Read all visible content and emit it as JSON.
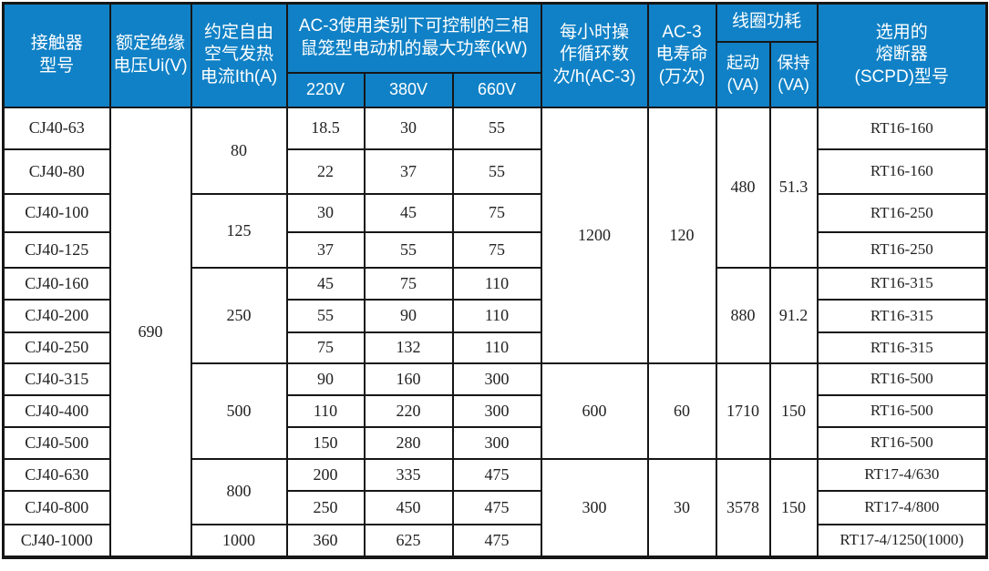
{
  "colors": {
    "header_bg": "#1081c6",
    "header_text": "#ffffff",
    "border": "#161616",
    "body_text": "#222222"
  },
  "table": {
    "header": {
      "model": "接触器\n型号",
      "rated_voltage": "额定绝缘\n电压Ui(V)",
      "thermal_current": "约定自由\n空气发热\n电流Ith(A)",
      "ac3_power_group": "AC-3使用类别下可控制的三相\n鼠笼型电动机的最大功率(kW)",
      "v220": "220V",
      "v380": "380V",
      "v660": "660V",
      "cycles": "每小时操\n作循环数\n次/h(AC-3)",
      "life": "AC-3\n电寿命\n(万次)",
      "coil_group": "线圈功耗",
      "coil_start": "起动\n(VA)",
      "coil_hold": "保持\n(VA)",
      "fuse": "选用的\n熔断器\n(SCPD)型号"
    },
    "body": [
      [
        {
          "k": "model",
          "t": "CJ40-63"
        },
        {
          "k": "ui",
          "t": "690",
          "rs": 13
        },
        {
          "k": "ith",
          "t": "80",
          "rs": 2
        },
        {
          "k": "p220",
          "t": "18.5"
        },
        {
          "k": "p380",
          "t": "30"
        },
        {
          "k": "p660",
          "t": "55"
        },
        {
          "k": "cycles",
          "t": "1200",
          "rs": 7
        },
        {
          "k": "life",
          "t": "120",
          "rs": 7
        },
        {
          "k": "start",
          "t": "480",
          "rs": 4
        },
        {
          "k": "hold",
          "t": "51.3",
          "rs": 4
        },
        {
          "k": "fuse",
          "t": "RT16-160"
        }
      ],
      [
        {
          "k": "model",
          "t": "CJ40-80"
        },
        {
          "k": "p220",
          "t": "22"
        },
        {
          "k": "p380",
          "t": "37"
        },
        {
          "k": "p660",
          "t": "55"
        },
        {
          "k": "fuse",
          "t": "RT16-160"
        }
      ],
      [
        {
          "k": "model",
          "t": "CJ40-100"
        },
        {
          "k": "ith",
          "t": "125",
          "rs": 2
        },
        {
          "k": "p220",
          "t": "30"
        },
        {
          "k": "p380",
          "t": "45"
        },
        {
          "k": "p660",
          "t": "75"
        },
        {
          "k": "fuse",
          "t": "RT16-250"
        }
      ],
      [
        {
          "k": "model",
          "t": "CJ40-125"
        },
        {
          "k": "p220",
          "t": "37"
        },
        {
          "k": "p380",
          "t": "55"
        },
        {
          "k": "p660",
          "t": "75"
        },
        {
          "k": "fuse",
          "t": "RT16-250"
        }
      ],
      [
        {
          "k": "model",
          "t": "CJ40-160"
        },
        {
          "k": "ith",
          "t": "250",
          "rs": 3
        },
        {
          "k": "p220",
          "t": "45"
        },
        {
          "k": "p380",
          "t": "75"
        },
        {
          "k": "p660",
          "t": "110"
        },
        {
          "k": "start",
          "t": "880",
          "rs": 3
        },
        {
          "k": "hold",
          "t": "91.2",
          "rs": 3
        },
        {
          "k": "fuse",
          "t": "RT16-315"
        }
      ],
      [
        {
          "k": "model",
          "t": "CJ40-200"
        },
        {
          "k": "p220",
          "t": "55"
        },
        {
          "k": "p380",
          "t": "90"
        },
        {
          "k": "p660",
          "t": "110"
        },
        {
          "k": "fuse",
          "t": "RT16-315"
        }
      ],
      [
        {
          "k": "model",
          "t": "CJ40-250"
        },
        {
          "k": "p220",
          "t": "75"
        },
        {
          "k": "p380",
          "t": "132"
        },
        {
          "k": "p660",
          "t": "110"
        },
        {
          "k": "fuse",
          "t": "RT16-315"
        }
      ],
      [
        {
          "k": "model",
          "t": "CJ40-315"
        },
        {
          "k": "ith",
          "t": "500",
          "rs": 3
        },
        {
          "k": "p220",
          "t": "90"
        },
        {
          "k": "p380",
          "t": "160"
        },
        {
          "k": "p660",
          "t": "300"
        },
        {
          "k": "cycles",
          "t": "600",
          "rs": 3
        },
        {
          "k": "life",
          "t": "60",
          "rs": 3
        },
        {
          "k": "start",
          "t": "1710",
          "rs": 3
        },
        {
          "k": "hold",
          "t": "150",
          "rs": 3
        },
        {
          "k": "fuse",
          "t": "RT16-500"
        }
      ],
      [
        {
          "k": "model",
          "t": "CJ40-400"
        },
        {
          "k": "p220",
          "t": "110"
        },
        {
          "k": "p380",
          "t": "220"
        },
        {
          "k": "p660",
          "t": "300"
        },
        {
          "k": "fuse",
          "t": "RT16-500"
        }
      ],
      [
        {
          "k": "model",
          "t": "CJ40-500"
        },
        {
          "k": "p220",
          "t": "150"
        },
        {
          "k": "p380",
          "t": "280"
        },
        {
          "k": "p660",
          "t": "300"
        },
        {
          "k": "fuse",
          "t": "RT16-500"
        }
      ],
      [
        {
          "k": "model",
          "t": "CJ40-630"
        },
        {
          "k": "ith",
          "t": "800",
          "rs": 2
        },
        {
          "k": "p220",
          "t": "200"
        },
        {
          "k": "p380",
          "t": "335"
        },
        {
          "k": "p660",
          "t": "475"
        },
        {
          "k": "cycles",
          "t": "300",
          "rs": 3
        },
        {
          "k": "life",
          "t": "30",
          "rs": 3
        },
        {
          "k": "start",
          "t": "3578",
          "rs": 3
        },
        {
          "k": "hold",
          "t": "150",
          "rs": 3
        },
        {
          "k": "fuse",
          "t": "RT17-4/630"
        }
      ],
      [
        {
          "k": "model",
          "t": "CJ40-800"
        },
        {
          "k": "p220",
          "t": "250"
        },
        {
          "k": "p380",
          "t": "450"
        },
        {
          "k": "p660",
          "t": "475"
        },
        {
          "k": "fuse",
          "t": "RT17-4/800"
        }
      ],
      [
        {
          "k": "model",
          "t": "CJ40-1000"
        },
        {
          "k": "ith",
          "t": "1000"
        },
        {
          "k": "p220",
          "t": "360"
        },
        {
          "k": "p380",
          "t": "625"
        },
        {
          "k": "p660",
          "t": "475"
        },
        {
          "k": "fuse",
          "t": "RT17-4/1250(1000)"
        }
      ]
    ]
  }
}
